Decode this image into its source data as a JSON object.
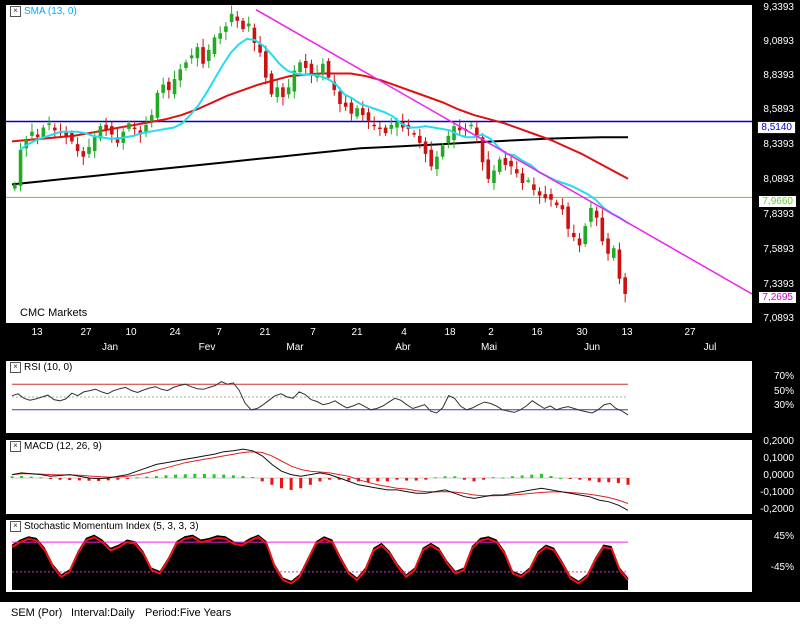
{
  "chart_data": [
    {
      "type": "candlestick",
      "title": "SMA (13, 0)",
      "overlays": [
        "SMA (13)",
        "SMA 50",
        "SMA 200",
        "Downtrend line",
        "Resistance 8,5140",
        "Support 7,9660"
      ],
      "ylim": [
        7.0893,
        9.3393
      ],
      "y_ticks": [
        "9,3393",
        "9,0893",
        "8,8393",
        "8,5893",
        "8,3393",
        "8,0893",
        "7,8393",
        "7,5893",
        "7,3393",
        "7,0893"
      ],
      "x_ticks": [
        "13",
        "27",
        "10",
        "24",
        "7",
        "21",
        "7",
        "21",
        "4",
        "18",
        "2",
        "16",
        "30",
        "13",
        "27"
      ],
      "x_months": [
        "Jan",
        "Fev",
        "Mar",
        "Abr",
        "Mai",
        "Jun",
        "Jul"
      ],
      "watermark": "CMC Markets",
      "levels": [
        {
          "value": 8.514,
          "label": "8,5140",
          "color": "#0000cc"
        },
        {
          "value": 7.966,
          "label": "7,9660",
          "color": "#66cc33"
        }
      ],
      "last_price": {
        "value": 7.2695,
        "label": "7,2695",
        "color": "#cc00cc"
      },
      "candles_close": [
        8.06,
        8.31,
        8.38,
        8.44,
        8.4,
        8.47,
        8.5,
        8.45,
        8.43,
        8.4,
        8.37,
        8.3,
        8.26,
        8.33,
        8.4,
        8.48,
        8.45,
        8.42,
        8.36,
        8.44,
        8.5,
        8.46,
        8.42,
        8.49,
        8.56,
        8.72,
        8.78,
        8.74,
        8.82,
        8.89,
        8.94,
        8.99,
        9.05,
        8.93,
        9.03,
        9.12,
        9.15,
        9.2,
        9.29,
        9.24,
        9.18,
        9.22,
        9.08,
        9.01,
        8.83,
        8.71,
        8.76,
        8.69,
        8.76,
        8.88,
        8.94,
        8.9,
        8.85,
        8.86,
        8.93,
        8.83,
        8.74,
        8.64,
        8.62,
        8.57,
        8.61,
        8.56,
        8.52,
        8.48,
        8.46,
        8.43,
        8.49,
        8.51,
        8.47,
        8.46,
        8.42,
        8.36,
        8.28,
        8.19,
        8.26,
        8.34,
        8.41,
        8.48,
        8.45,
        8.45,
        8.49,
        8.4,
        8.22,
        8.1,
        8.16,
        8.24,
        8.2,
        8.19,
        8.14,
        8.07,
        8.09,
        8.02,
        7.98,
        7.96,
        7.95,
        7.91,
        7.88,
        7.74,
        7.68,
        7.62,
        7.76,
        7.89,
        7.82,
        7.65,
        7.56,
        7.6,
        7.38,
        7.27
      ],
      "sma13": [
        8.31,
        8.35,
        8.38,
        8.4,
        8.42,
        8.44,
        8.44,
        8.44,
        8.43,
        8.41,
        8.4,
        8.39,
        8.39,
        8.4,
        8.41,
        8.43,
        8.44,
        8.45,
        8.46,
        8.47,
        8.5,
        8.56,
        8.63,
        8.72,
        8.82,
        8.92,
        9.01,
        9.07,
        9.11,
        9.1,
        9.06,
        9.0,
        8.93,
        8.88,
        8.86,
        8.85,
        8.85,
        8.84,
        8.82,
        8.78,
        8.71,
        8.68,
        8.64,
        8.62,
        8.6,
        8.58,
        8.55,
        8.5,
        8.47,
        8.47,
        8.48,
        8.47,
        8.46,
        8.45,
        8.42,
        8.4,
        8.4,
        8.42,
        8.39,
        8.33,
        8.28,
        8.27,
        8.23,
        8.2,
        8.15,
        8.12,
        8.09,
        8.07,
        8.05,
        8.02,
        7.99,
        7.95,
        7.89,
        7.85,
        7.82,
        7.78
      ],
      "sma50": [
        8.37,
        8.38,
        8.39,
        8.4,
        8.41,
        8.43,
        8.45,
        8.47,
        8.49,
        8.51,
        8.53,
        8.56,
        8.6,
        8.65,
        8.7,
        8.74,
        8.78,
        8.81,
        8.84,
        8.85,
        8.86,
        8.86,
        8.86,
        8.84,
        8.81,
        8.77,
        8.73,
        8.69,
        8.65,
        8.6,
        8.56,
        8.53,
        8.5,
        8.46,
        8.42,
        8.38,
        8.33,
        8.28,
        8.22,
        8.16,
        8.1
      ],
      "sma200": [
        8.06,
        8.08,
        8.1,
        8.12,
        8.14,
        8.16,
        8.18,
        8.2,
        8.22,
        8.24,
        8.26,
        8.28,
        8.3,
        8.32,
        8.33,
        8.34,
        8.35,
        8.36,
        8.37,
        8.38,
        8.39,
        8.395,
        8.4,
        8.4
      ],
      "trendline": [
        [
          9.32,
          7.27
        ]
      ]
    },
    {
      "type": "line",
      "title": "RSI (10, 0)",
      "ylim": [
        0,
        100
      ],
      "y_ticks": [
        "70%",
        "50%",
        "30%"
      ],
      "levels": [
        70,
        50,
        30
      ],
      "values": [
        52,
        55,
        48,
        45,
        47,
        50,
        53,
        46,
        44,
        47,
        56,
        52,
        58,
        60,
        62,
        58,
        55,
        60,
        63,
        65,
        60,
        57,
        61,
        64,
        66,
        62,
        60,
        65,
        68,
        70,
        66,
        63,
        62,
        65,
        68,
        74,
        70,
        72,
        60,
        40,
        30,
        32,
        38,
        45,
        52,
        55,
        50,
        48,
        58,
        54,
        46,
        43,
        38,
        40,
        44,
        38,
        33,
        36,
        40,
        35,
        30,
        32,
        36,
        42,
        48,
        45,
        38,
        32,
        35,
        38,
        28,
        25,
        33,
        52,
        48,
        36,
        30,
        33,
        38,
        42,
        40,
        36,
        30,
        28,
        26,
        30,
        36,
        44,
        38,
        32,
        36,
        30,
        33,
        35,
        32,
        29,
        27,
        25,
        30,
        38,
        40,
        32,
        28,
        22
      ]
    },
    {
      "type": "line",
      "title": "MACD (12, 26, 9)",
      "ylim": [
        -0.2,
        0.2
      ],
      "y_ticks": [
        "0,2000",
        "0,1000",
        "0,0000",
        "-0,1000",
        "-0,2000"
      ],
      "macd": [
        0.02,
        0.03,
        0.025,
        0.02,
        0.01,
        0.015,
        0.02,
        0.01,
        0.0,
        -0.005,
        0.0,
        0.01,
        0.02,
        0.04,
        0.06,
        0.08,
        0.09,
        0.1,
        0.11,
        0.12,
        0.13,
        0.14,
        0.155,
        0.16,
        0.17,
        0.16,
        0.13,
        0.08,
        0.04,
        0.02,
        0.01,
        0.02,
        0.03,
        0.02,
        0.0,
        -0.02,
        -0.04,
        -0.05,
        -0.06,
        -0.07,
        -0.07,
        -0.08,
        -0.09,
        -0.09,
        -0.08,
        -0.07,
        -0.09,
        -0.11,
        -0.12,
        -0.11,
        -0.1,
        -0.1,
        -0.09,
        -0.08,
        -0.07,
        -0.06,
        -0.07,
        -0.08,
        -0.09,
        -0.1,
        -0.11,
        -0.13,
        -0.14,
        -0.16,
        -0.19
      ],
      "signal": [
        0.02,
        0.025,
        0.025,
        0.023,
        0.02,
        0.018,
        0.018,
        0.016,
        0.012,
        0.008,
        0.005,
        0.006,
        0.01,
        0.018,
        0.03,
        0.045,
        0.06,
        0.075,
        0.09,
        0.1,
        0.11,
        0.12,
        0.13,
        0.14,
        0.15,
        0.155,
        0.15,
        0.13,
        0.1,
        0.07,
        0.05,
        0.04,
        0.035,
        0.03,
        0.02,
        0.01,
        -0.01,
        -0.025,
        -0.04,
        -0.05,
        -0.06,
        -0.065,
        -0.075,
        -0.08,
        -0.082,
        -0.08,
        -0.083,
        -0.09,
        -0.1,
        -0.105,
        -0.105,
        -0.103,
        -0.1,
        -0.095,
        -0.09,
        -0.085,
        -0.082,
        -0.082,
        -0.085,
        -0.09,
        -0.095,
        -0.105,
        -0.115,
        -0.13,
        -0.15
      ],
      "histogram": [
        0.01,
        0.012,
        0.008,
        0.004,
        -0.006,
        -0.01,
        -0.012,
        -0.014,
        -0.016,
        -0.018,
        -0.014,
        -0.01,
        -0.006,
        0.004,
        0.008,
        0.012,
        0.016,
        0.02,
        0.022,
        0.025,
        0.024,
        0.022,
        0.02,
        0.016,
        0.012,
        0.006,
        -0.02,
        -0.04,
        -0.06,
        -0.07,
        -0.06,
        -0.04,
        -0.02,
        -0.01,
        -0.01,
        -0.015,
        -0.02,
        -0.025,
        -0.02,
        -0.02,
        -0.01,
        -0.015,
        -0.015,
        -0.01,
        0.004,
        0.01,
        0.01,
        -0.01,
        -0.02,
        -0.01,
        0.005,
        0.003,
        0.01,
        0.015,
        0.02,
        0.025,
        0.012,
        0.0,
        -0.005,
        -0.01,
        -0.015,
        -0.025,
        -0.025,
        -0.03,
        -0.04
      ]
    },
    {
      "type": "area",
      "title": "Stochastic Momentum Index (5, 3, 3, 3)",
      "ylim": [
        -100,
        100
      ],
      "y_ticks": [
        "45%",
        "-45%"
      ],
      "levels": [
        45,
        -45
      ],
      "values": [
        30,
        45,
        55,
        50,
        20,
        -30,
        -60,
        -45,
        10,
        50,
        60,
        45,
        20,
        30,
        45,
        40,
        10,
        -40,
        -50,
        -10,
        40,
        55,
        60,
        45,
        50,
        58,
        55,
        40,
        35,
        50,
        60,
        40,
        -30,
        -70,
        -80,
        -60,
        -10,
        40,
        55,
        45,
        -5,
        -50,
        -70,
        -40,
        20,
        35,
        10,
        -30,
        -60,
        -40,
        20,
        35,
        20,
        -20,
        -50,
        -40,
        25,
        50,
        55,
        45,
        10,
        -50,
        -60,
        -40,
        10,
        30,
        20,
        -20,
        -65,
        -80,
        -60,
        -10,
        30,
        25,
        -40,
        -70
      ]
    }
  ],
  "footer": {
    "symbol": "SEM (Por)",
    "interval": "Interval:Daily",
    "period": "Period:Five Years"
  }
}
